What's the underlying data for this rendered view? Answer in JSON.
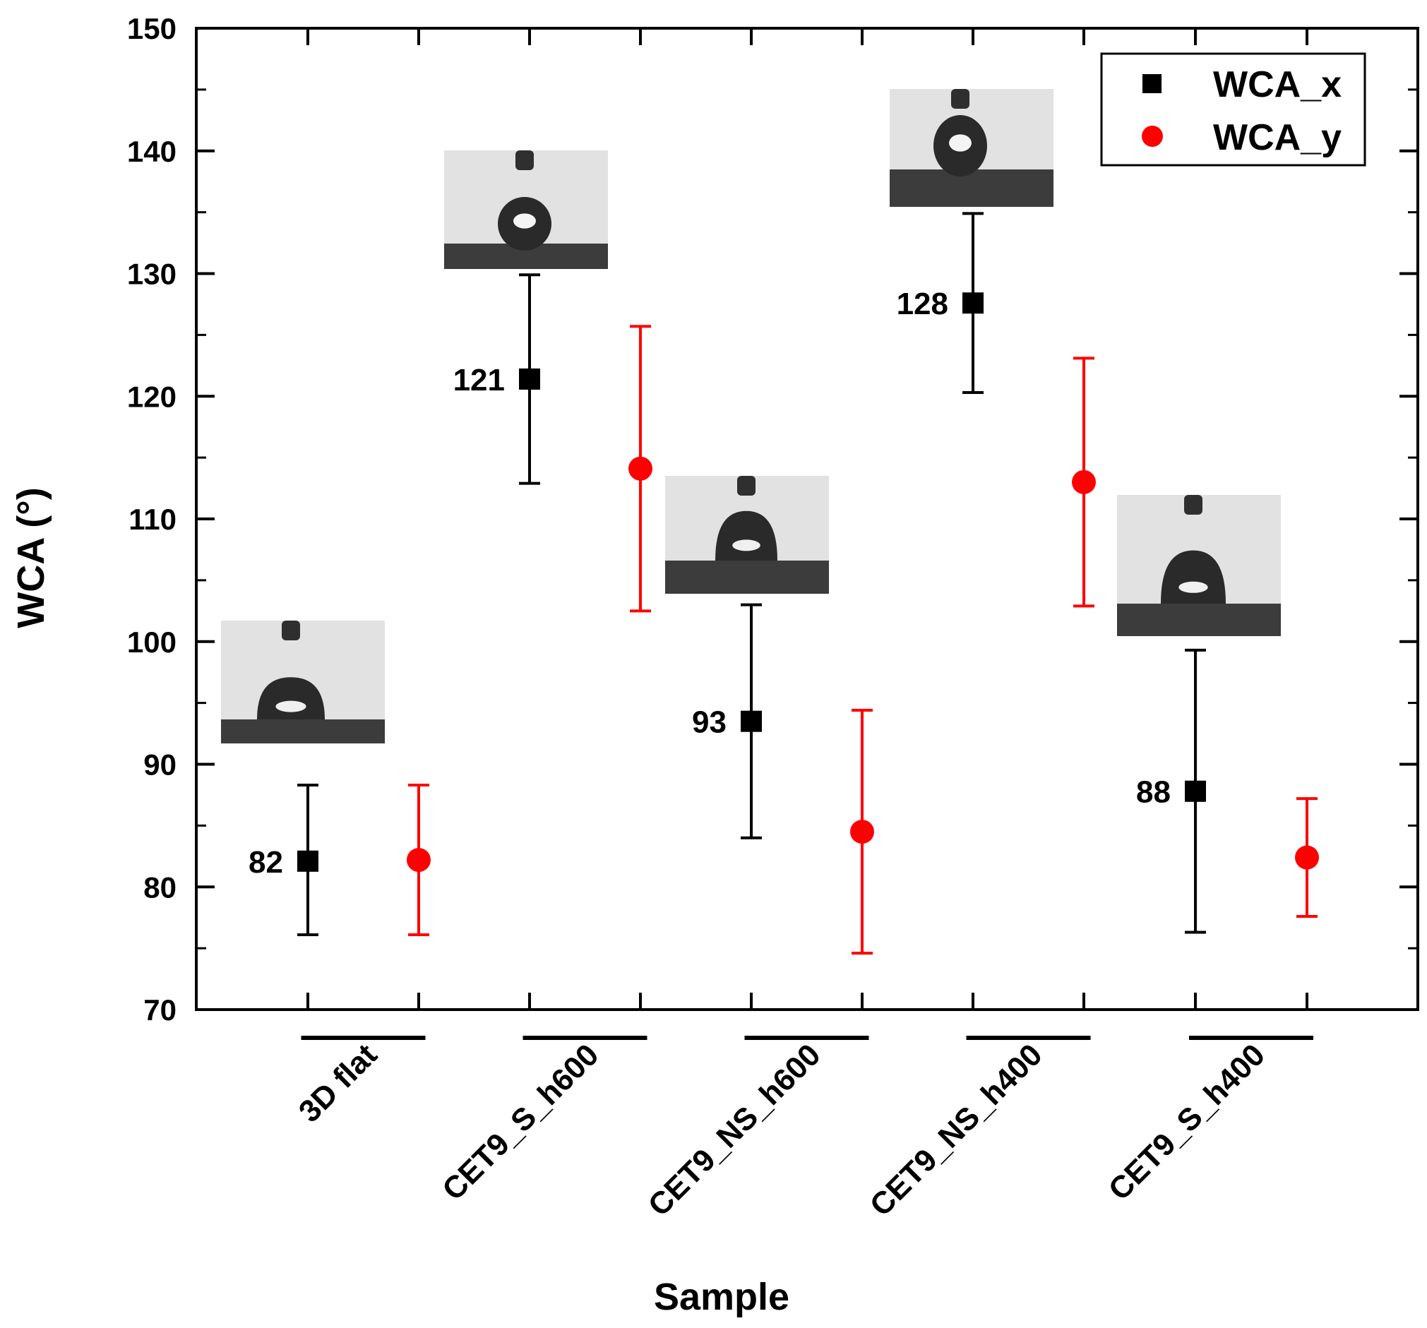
{
  "chart_data": {
    "type": "scatter",
    "title": "",
    "xlabel": "Sample",
    "ylabel": "WCA (°)",
    "ylim": [
      70,
      150
    ],
    "yticks": [
      70,
      80,
      90,
      100,
      110,
      120,
      130,
      140,
      150
    ],
    "categories": [
      "3D flat",
      "CET9_S_h600",
      "CET9_NS_h600",
      "CET9_NS_h400",
      "CET9_S_h400"
    ],
    "legend_position": "top-right",
    "grid": false,
    "series": [
      {
        "name": "WCA_x",
        "marker": "square",
        "color": "#000000",
        "values": [
          82.1,
          121.4,
          93.5,
          127.6,
          87.8
        ],
        "err_low": [
          76.1,
          112.9,
          84.0,
          120.3,
          76.3
        ],
        "err_high": [
          88.3,
          129.9,
          103.0,
          134.9,
          99.3
        ],
        "data_labels": [
          "82",
          "121",
          "93",
          "128",
          "88"
        ]
      },
      {
        "name": "WCA_y",
        "marker": "circle",
        "color": "#ff0000",
        "values": [
          82.2,
          114.1,
          84.5,
          113.0,
          82.4
        ],
        "err_low": [
          76.1,
          102.5,
          74.6,
          102.9,
          77.6
        ],
        "err_high": [
          88.3,
          125.7,
          94.4,
          123.1,
          87.2
        ],
        "data_labels": []
      }
    ],
    "insets": [
      {
        "category": "3D flat",
        "type": "droplet-photo",
        "shape": "flat-dome"
      },
      {
        "category": "CET9_S_h600",
        "type": "droplet-photo",
        "shape": "round"
      },
      {
        "category": "CET9_NS_h600",
        "type": "droplet-photo",
        "shape": "dome"
      },
      {
        "category": "CET9_NS_h400",
        "type": "droplet-photo",
        "shape": "sphere"
      },
      {
        "category": "CET9_S_h400",
        "type": "droplet-photo",
        "shape": "dome"
      }
    ]
  }
}
